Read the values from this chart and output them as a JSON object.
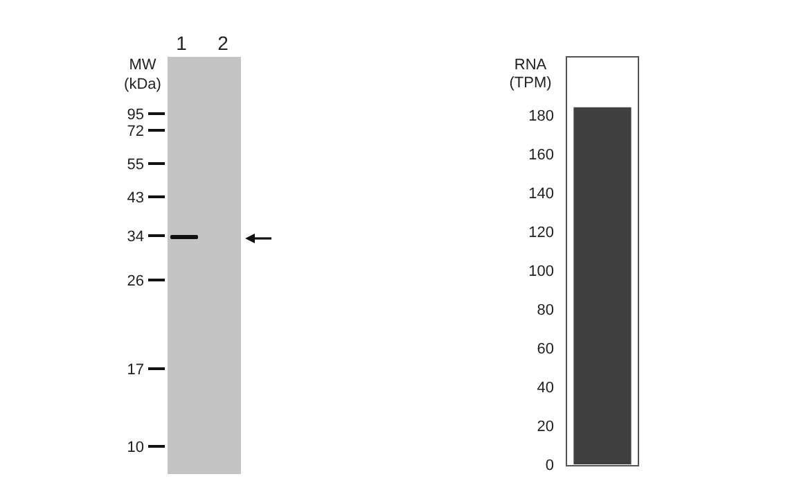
{
  "chart_data": [
    {
      "type": "other",
      "annotations": [
        "1",
        "2",
        "MW",
        "(kDa)",
        "95",
        "72",
        "55",
        "43",
        "34",
        "26",
        "17",
        "10"
      ]
    },
    {
      "type": "bar",
      "ylabel": "RNA\n(TPM)",
      "categories": [
        null
      ],
      "values": [
        184
      ],
      "color": "#404040",
      "ylim": [
        0,
        210
      ],
      "yticks": [
        0,
        20,
        40,
        60,
        80,
        100,
        120,
        140,
        160,
        180
      ],
      "grid": false
    }
  ]
}
